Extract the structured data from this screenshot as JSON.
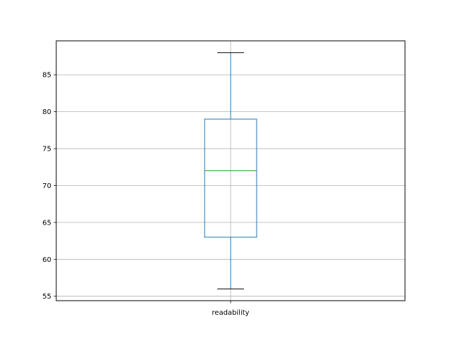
{
  "chart_data": {
    "type": "box",
    "categories": [
      "readability"
    ],
    "boxes": [
      {
        "label": "readability",
        "whisker_low": 56,
        "q1": 63,
        "median": 72,
        "q3": 79,
        "whisker_high": 88
      }
    ],
    "yticks": [
      55,
      60,
      65,
      70,
      75,
      80,
      85
    ],
    "ylim": [
      54.4,
      89.6
    ],
    "grid": true,
    "title": "",
    "xlabel": "",
    "ylabel": "",
    "colors": {
      "box": "#1f77b4",
      "median": "#2ca02c",
      "caps": "#000000",
      "grid": "#b0b0b0"
    }
  }
}
